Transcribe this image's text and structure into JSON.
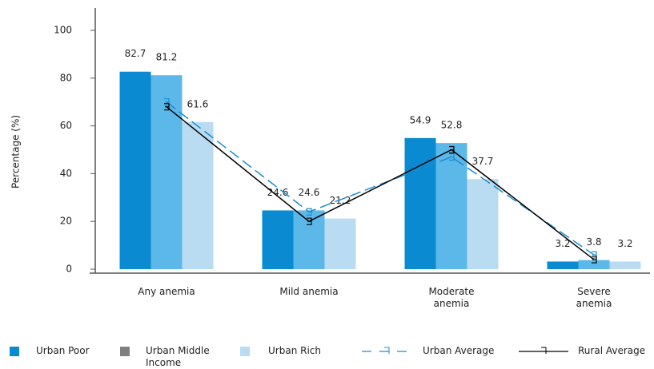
{
  "chart_data": {
    "type": "bar",
    "y_label": "Percentage (%)",
    "categories": [
      "Any anemia",
      "Mild anemia",
      "Moderate anemia",
      "Severe anemia"
    ],
    "series": [
      {
        "name": "Urban Poor",
        "color": "#0a8ad0",
        "values": [
          82.7,
          24.6,
          54.9,
          3.2
        ]
      },
      {
        "name": "Urban Middle Income",
        "color": "#5bb8e8",
        "legend_color": "#808080",
        "values": [
          81.2,
          24.6,
          52.8,
          3.8
        ]
      },
      {
        "name": "Urban Rich",
        "color": "#b9dcf2",
        "values": [
          61.6,
          21.2,
          37.7,
          3.2
        ]
      },
      {
        "name": "Urban Average",
        "type": "line",
        "dashed": true,
        "color": "#1a8ccc",
        "values": [
          70,
          24,
          47,
          6
        ]
      },
      {
        "name": "Rural Average",
        "type": "line",
        "dashed": false,
        "color": "#000000",
        "values": [
          68,
          20,
          50,
          4
        ]
      }
    ],
    "ylim": [
      0,
      100
    ],
    "yticks": [
      0,
      20,
      40,
      60,
      80,
      100
    ],
    "grid": false
  }
}
